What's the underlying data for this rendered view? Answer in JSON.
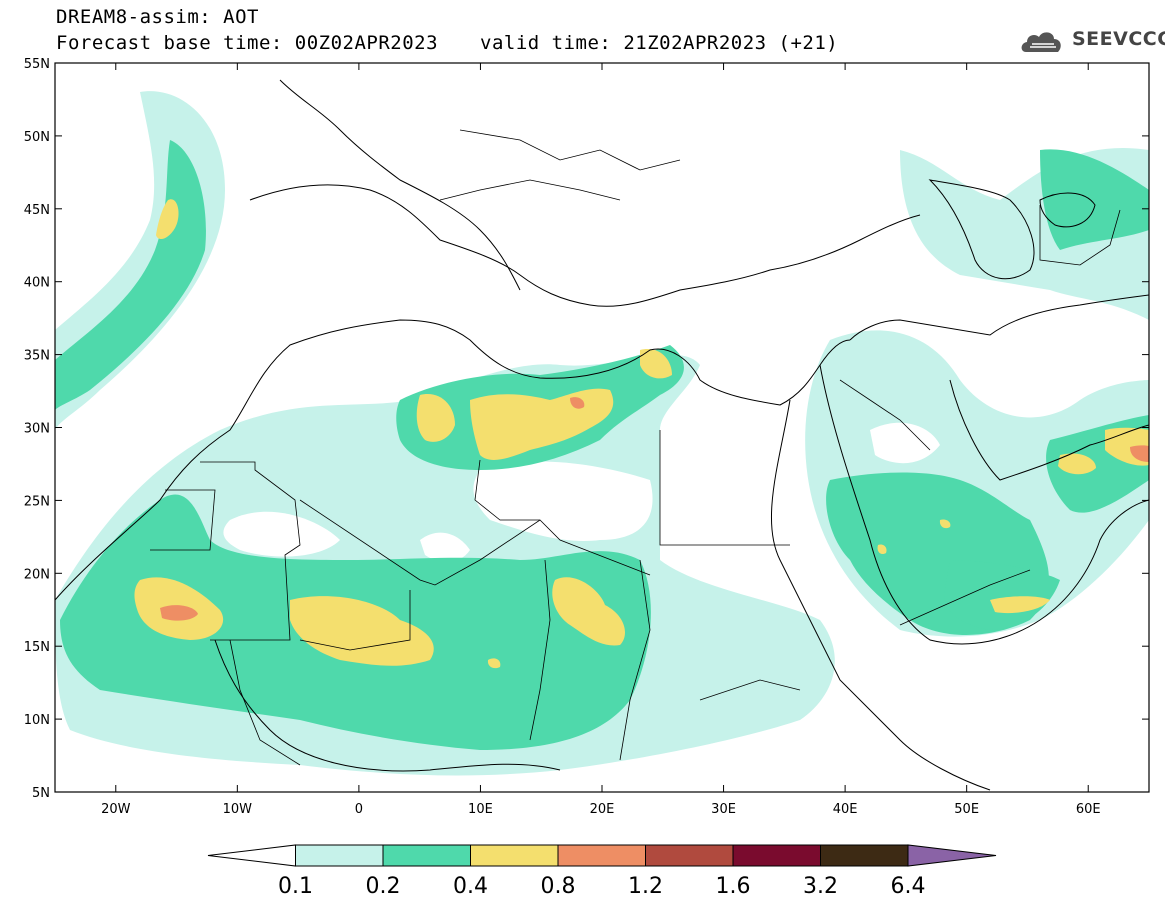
{
  "header": {
    "title": "DREAM8-assim: AOT",
    "base_time": "Forecast base time: 00Z02APR2023",
    "valid_time": "valid time: 21Z02APR2023 (+21)"
  },
  "logo": {
    "text": "SEEVCCC",
    "icon": "cloud-logo-icon"
  },
  "map": {
    "lon_range": [
      -25,
      65
    ],
    "lat_range": [
      5,
      55
    ],
    "lat_ticks": [
      {
        "value": 55,
        "label": "55N"
      },
      {
        "value": 50,
        "label": "50N"
      },
      {
        "value": 45,
        "label": "45N"
      },
      {
        "value": 40,
        "label": "40N"
      },
      {
        "value": 35,
        "label": "35N"
      },
      {
        "value": 30,
        "label": "30N"
      },
      {
        "value": 25,
        "label": "25N"
      },
      {
        "value": 20,
        "label": "20N"
      },
      {
        "value": 15,
        "label": "15N"
      },
      {
        "value": 10,
        "label": "10N"
      },
      {
        "value": 5,
        "label": "5N"
      }
    ],
    "lon_ticks": [
      {
        "value": -20,
        "label": "20W"
      },
      {
        "value": -10,
        "label": "10W"
      },
      {
        "value": 0,
        "label": "0"
      },
      {
        "value": 10,
        "label": "10E"
      },
      {
        "value": 20,
        "label": "20E"
      },
      {
        "value": 30,
        "label": "30E"
      },
      {
        "value": 40,
        "label": "40E"
      },
      {
        "value": 50,
        "label": "50E"
      },
      {
        "value": 60,
        "label": "60E"
      }
    ]
  },
  "colorbar": {
    "levels": [
      "0.1",
      "0.2",
      "0.4",
      "0.8",
      "1.2",
      "1.6",
      "3.2",
      "6.4"
    ],
    "colors": [
      "#ffffff",
      "#c6f2ea",
      "#4fd9ab",
      "#f4df6e",
      "#ee8e64",
      "#b04a3e",
      "#7a0b2e",
      "#3d2a14",
      "#8a63a6"
    ]
  }
}
